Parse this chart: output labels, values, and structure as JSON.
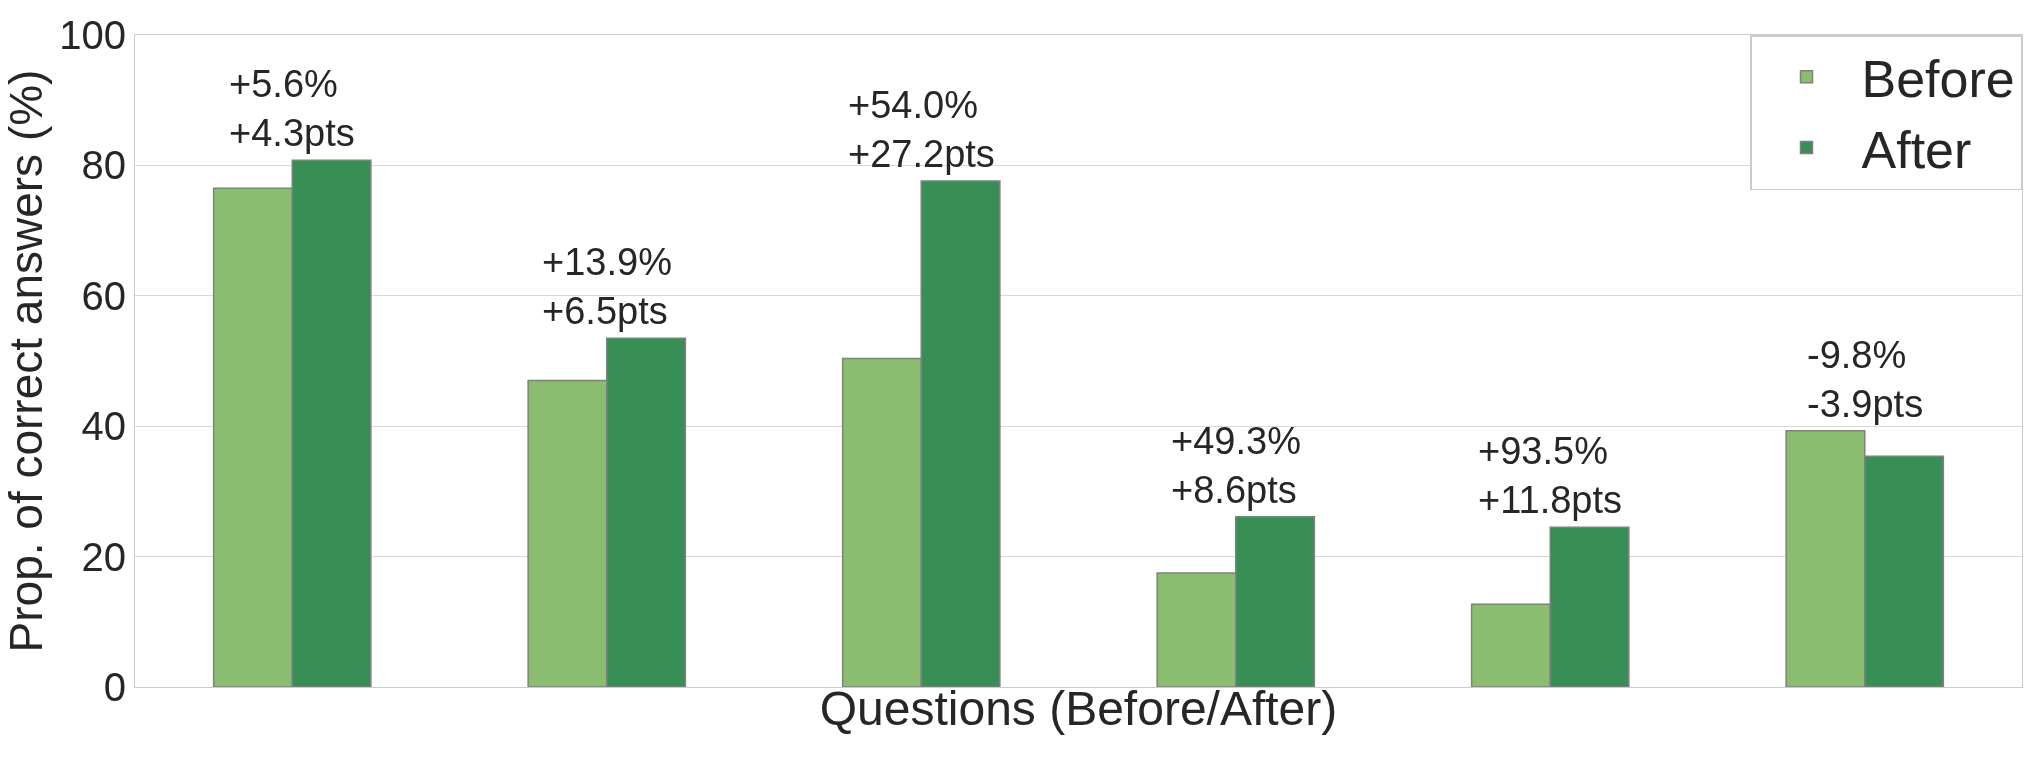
{
  "chart_data": {
    "type": "bar",
    "xlabel": "Questions (Before/After)",
    "ylabel": "Prop. of correct answers (%)",
    "categories": [
      null,
      null,
      null,
      null,
      null,
      null
    ],
    "series": [
      {
        "name": "Before",
        "color": "#8abd6f",
        "values": [
          76.5,
          47.0,
          50.4,
          17.5,
          12.7,
          39.3
        ]
      },
      {
        "name": "After",
        "color": "#378f56",
        "values": [
          80.8,
          53.5,
          77.6,
          26.1,
          24.5,
          35.4
        ]
      }
    ],
    "ylim": [
      0,
      100
    ],
    "yticks": [
      0,
      20,
      40,
      60,
      80,
      100
    ],
    "grid": "y",
    "legend": "top right",
    "annotations": [
      {
        "text": "+5.6%\n+4.3pts",
        "y": 80.8
      },
      {
        "text": "+13.9%\n+6.5pts",
        "y": 53.5
      },
      {
        "text": "+54.0%\n+27.2pts",
        "y": 77.6
      },
      {
        "text": "+49.3%\n+8.6pts",
        "y": 26.1
      },
      {
        "text": "+93.5%\n+11.8pts",
        "y": 24.5
      },
      {
        "text": "-9.8%\n-3.9pts",
        "y": 39.3
      }
    ]
  }
}
